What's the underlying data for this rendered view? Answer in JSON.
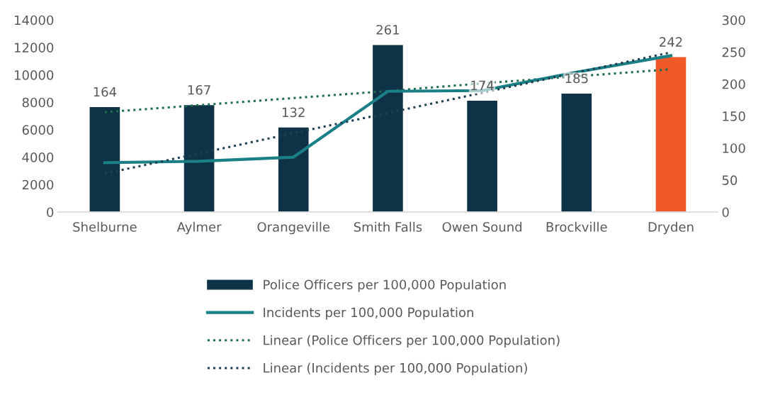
{
  "chart_data": {
    "type": "bar",
    "categories": [
      "Shelburne",
      "Aylmer",
      "Orangeville",
      "Smith Falls",
      "Owen Sound",
      "Brockville",
      "Dryden"
    ],
    "series": [
      {
        "name": "Police Officers per 100,000 Population",
        "value_labels": [
          "164",
          "167",
          "132",
          "261",
          "174",
          "185",
          "242"
        ],
        "axis": "y2",
        "color": "#0e3347",
        "colors": [
          "#0e3347",
          "#0e3347",
          "#0e3347",
          "#0e3347",
          "#0e3347",
          "#0e3347",
          "#f05a28"
        ],
        "values": [
          164,
          167,
          132,
          261,
          174,
          185,
          242
        ]
      },
      {
        "name": "Incidents per 100,000 Population",
        "type": "line",
        "color": "#1a7f86",
        "line_style": "solid",
        "values": [
          3600,
          3700,
          4000,
          8800,
          8850,
          10200,
          11400
        ]
      },
      {
        "name": "Linear (Police Officers per 100,000 Population)",
        "type": "line",
        "axis": "y2",
        "color": "#1f6e4f",
        "line_style": "dotted",
        "values": [
          156,
          167,
          178,
          189,
          201,
          212,
          223
        ]
      },
      {
        "name": "Linear (Incidents per 100,000 Population)",
        "type": "line",
        "color": "#1f3f4f",
        "line_style": "dotted",
        "values": [
          2800,
          4270,
          5750,
          7220,
          8690,
          10170,
          11640
        ]
      }
    ],
    "ylim": [
      0,
      14000
    ],
    "yticks": [
      0,
      2000,
      4000,
      6000,
      8000,
      10000,
      12000,
      14000
    ],
    "y2lim": [
      0,
      300
    ],
    "y2ticks": [
      0,
      50,
      100,
      150,
      200,
      250,
      300
    ],
    "grid": false,
    "legend": "bottom",
    "marker": "none"
  }
}
